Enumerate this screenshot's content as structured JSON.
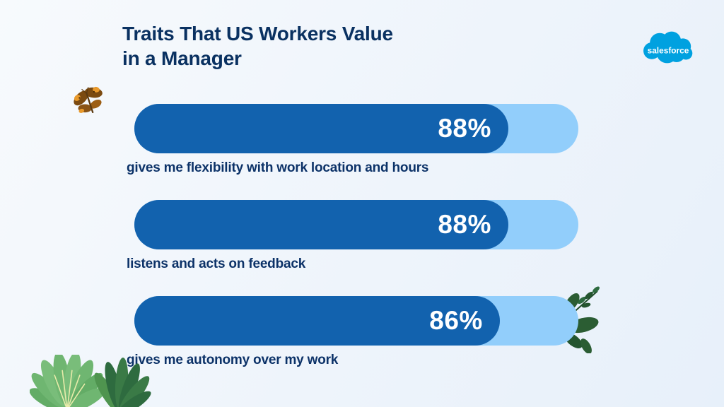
{
  "title": "Traits That US Workers Value\nin a Manager",
  "logo": {
    "label": "salesforce",
    "color": "#00A1E0"
  },
  "bars": [
    {
      "value": 88,
      "value_label": "88%",
      "label": "gives me flexibility with work location and hours"
    },
    {
      "value": 88,
      "value_label": "88%",
      "label": "listens and acts on feedback"
    },
    {
      "value": 86,
      "value_label": "86%",
      "label": "gives me autonomy over my work"
    }
  ],
  "chart_data": {
    "type": "bar",
    "orientation": "horizontal",
    "title": "Traits That US Workers Value in a Manager",
    "categories": [
      "gives me flexibility with work location and hours",
      "listens and acts on feedback",
      "gives me autonomy over my work"
    ],
    "values": [
      88,
      88,
      86
    ],
    "value_suffix": "%",
    "xlim": [
      0,
      100
    ],
    "grid": false,
    "legend": false,
    "bar_color": "#1262AE",
    "track_color": "#92CEFB",
    "value_label_color": "#FFFFFF",
    "category_label_color": "#0C3268"
  },
  "colors": {
    "background_start": "#F7FAFD",
    "background_end": "#E7F0FA",
    "title": "#0A3161",
    "bar_fill": "#1262AE",
    "bar_track": "#92CEFB",
    "logo_blue": "#00A1E0"
  },
  "decorations": {
    "top_left": "butterfly-illustration",
    "bottom_left": "bush-plants-illustration",
    "bar3_right": "leaf-sprigs-illustration"
  }
}
